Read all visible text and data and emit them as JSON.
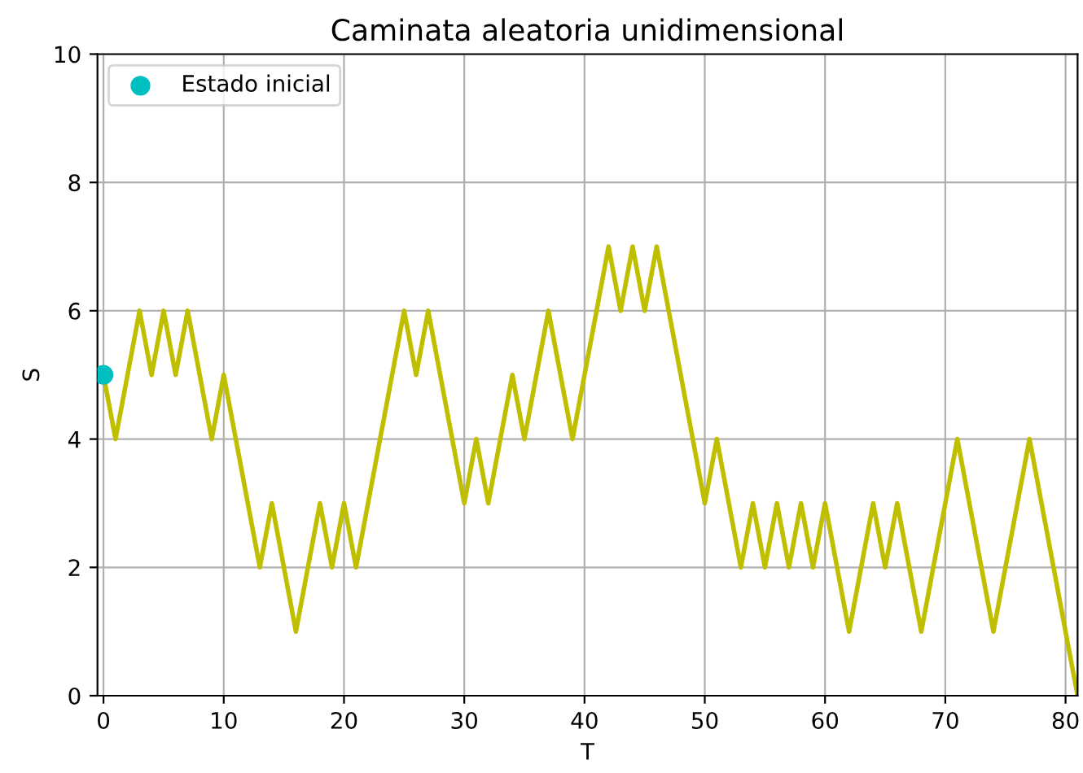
{
  "chart_data": {
    "type": "line",
    "title": "Caminata aleatoria unidimensional",
    "xlabel": "T",
    "ylabel": "S",
    "series": [
      {
        "color": "#bfbf00",
        "x": [
          0,
          1,
          2,
          3,
          4,
          5,
          6,
          7,
          8,
          9,
          10,
          11,
          12,
          13,
          14,
          15,
          16,
          17,
          18,
          19,
          20,
          21,
          22,
          23,
          24,
          25,
          26,
          27,
          28,
          29,
          30,
          31,
          32,
          33,
          34,
          35,
          36,
          37,
          38,
          39,
          40,
          41,
          42,
          43,
          44,
          45,
          46,
          47,
          48,
          49,
          50,
          51,
          52,
          53,
          54,
          55,
          56,
          57,
          58,
          59,
          60,
          61,
          62,
          63,
          64,
          65,
          66,
          67,
          68,
          69,
          70,
          71,
          72,
          73,
          74,
          75,
          76,
          77,
          78,
          79,
          80,
          81
        ],
        "values": [
          5,
          4,
          5,
          6,
          5,
          6,
          5,
          6,
          5,
          4,
          5,
          4,
          3,
          2,
          3,
          2,
          1,
          2,
          3,
          2,
          3,
          2,
          3,
          4,
          5,
          6,
          5,
          6,
          5,
          4,
          3,
          4,
          3,
          4,
          5,
          4,
          5,
          6,
          5,
          4,
          5,
          6,
          7,
          6,
          7,
          6,
          7,
          6,
          5,
          4,
          3,
          4,
          3,
          2,
          3,
          2,
          3,
          2,
          3,
          2,
          3,
          2,
          1,
          2,
          3,
          2,
          3,
          2,
          1,
          2,
          3,
          4,
          3,
          2,
          1,
          2,
          3,
          4,
          3,
          2,
          1,
          0
        ]
      },
      {
        "type": "scatter",
        "name": "Estado inicial",
        "color": "#00bfbf",
        "marker": "circle",
        "x": [
          0
        ],
        "values": [
          5
        ]
      }
    ],
    "xlim": [
      -0.5,
      81
    ],
    "ylim": [
      0,
      10
    ],
    "xticks": [
      0,
      10,
      20,
      30,
      40,
      50,
      60,
      70,
      80
    ],
    "yticks": [
      0,
      2,
      4,
      6,
      8,
      10
    ],
    "grid": true,
    "legend": "top left"
  }
}
